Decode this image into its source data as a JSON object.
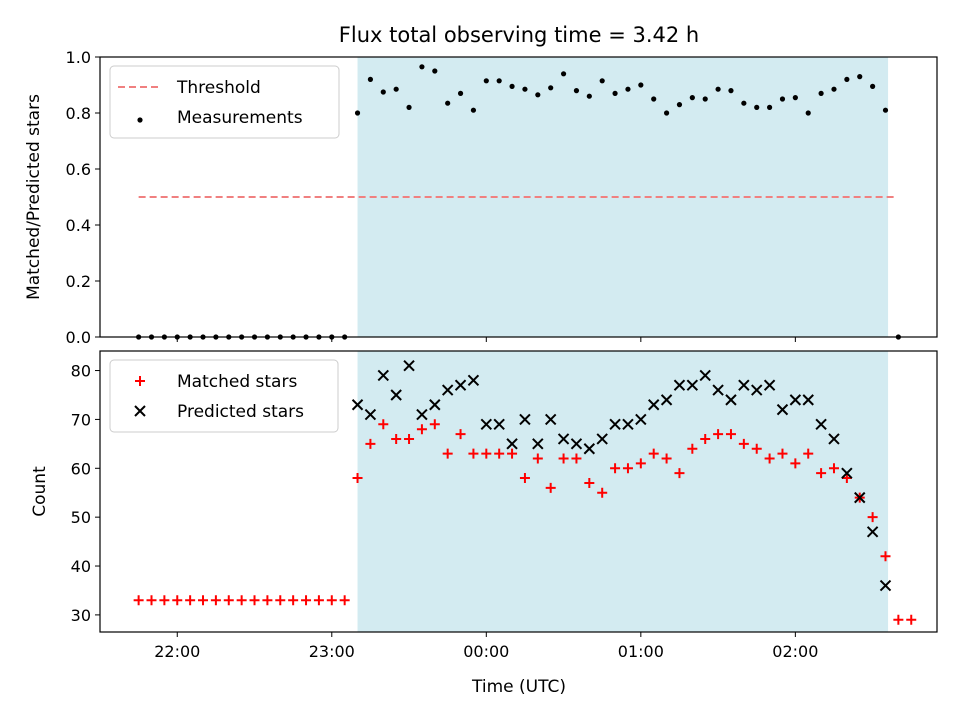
{
  "title": "Flux total observing time = 3.42 h",
  "chart_data": [
    {
      "type": "scatter",
      "ylabel": "Matched/Predicted stars",
      "xlabel": "",
      "ylim": [
        0,
        1
      ],
      "yticks": [
        "0.0",
        "0.2",
        "0.4",
        "0.6",
        "0.8",
        "1.0"
      ],
      "xlim": [
        "21:30",
        "02:55"
      ],
      "grid": false,
      "legend": "top-left",
      "highlight_span": [
        "23:10",
        "02:36"
      ],
      "highlight_color": "#d3ebf1",
      "threshold": {
        "name": "Threshold",
        "value": 0.5,
        "x": [
          "21:45",
          "02:39"
        ],
        "color": "#f08080"
      },
      "series": [
        {
          "name": "Measurements",
          "marker": "dot",
          "color": "#000000",
          "x": [
            "21:45",
            "21:50",
            "21:55",
            "22:00",
            "22:05",
            "22:10",
            "22:15",
            "22:20",
            "22:25",
            "22:30",
            "22:35",
            "22:40",
            "22:45",
            "22:50",
            "22:55",
            "23:00",
            "23:05",
            "23:10",
            "23:15",
            "23:20",
            "23:25",
            "23:30",
            "23:35",
            "23:40",
            "23:45",
            "23:50",
            "23:55",
            "00:00",
            "00:05",
            "00:10",
            "00:15",
            "00:20",
            "00:25",
            "00:30",
            "00:35",
            "00:40",
            "00:45",
            "00:50",
            "00:55",
            "01:00",
            "01:05",
            "01:10",
            "01:15",
            "01:20",
            "01:25",
            "01:30",
            "01:35",
            "01:40",
            "01:45",
            "01:50",
            "01:55",
            "02:00",
            "02:05",
            "02:10",
            "02:15",
            "02:20",
            "02:25",
            "02:30",
            "02:35",
            "02:40"
          ],
          "y": [
            0,
            0,
            0,
            0,
            0,
            0,
            0,
            0,
            0,
            0,
            0,
            0,
            0,
            0,
            0,
            0,
            0,
            0.8,
            0.92,
            0.875,
            0.885,
            0.82,
            0.965,
            0.95,
            0.835,
            0.87,
            0.81,
            0.915,
            0.915,
            0.895,
            0.885,
            0.865,
            0.89,
            0.94,
            0.88,
            0.86,
            0.915,
            0.87,
            0.885,
            0.9,
            0.85,
            0.8,
            0.83,
            0.855,
            0.85,
            0.885,
            0.88,
            0.835,
            0.82,
            0.82,
            0.85,
            0.855,
            0.8,
            0.87,
            0.885,
            0.92,
            0.93,
            0.895,
            0.81,
            0
          ]
        }
      ]
    },
    {
      "type": "scatter",
      "ylabel": "Count",
      "xlabel": "Time (UTC)",
      "ylim": [
        26.5,
        84
      ],
      "yticks": [
        "30",
        "40",
        "50",
        "60",
        "70",
        "80"
      ],
      "xticks": [
        "22:00",
        "23:00",
        "00:00",
        "01:00",
        "02:00"
      ],
      "xlim": [
        "21:30",
        "02:55"
      ],
      "grid": false,
      "legend": "top-left",
      "highlight_span": [
        "23:10",
        "02:36"
      ],
      "series": [
        {
          "name": "Matched stars",
          "marker": "plus",
          "color": "#ff0000",
          "x": [
            "21:45",
            "21:50",
            "21:55",
            "22:00",
            "22:05",
            "22:10",
            "22:15",
            "22:20",
            "22:25",
            "22:30",
            "22:35",
            "22:40",
            "22:45",
            "22:50",
            "22:55",
            "23:00",
            "23:05",
            "23:10",
            "23:15",
            "23:20",
            "23:25",
            "23:30",
            "23:35",
            "23:40",
            "23:45",
            "23:50",
            "23:55",
            "00:00",
            "00:05",
            "00:10",
            "00:15",
            "00:20",
            "00:25",
            "00:30",
            "00:35",
            "00:40",
            "00:45",
            "00:50",
            "00:55",
            "01:00",
            "01:05",
            "01:10",
            "01:15",
            "01:20",
            "01:25",
            "01:30",
            "01:35",
            "01:40",
            "01:45",
            "01:50",
            "01:55",
            "02:00",
            "02:05",
            "02:10",
            "02:15",
            "02:20",
            "02:25",
            "02:30",
            "02:35",
            "02:40"
          ],
          "y": [
            33,
            33,
            33,
            33,
            33,
            33,
            33,
            33,
            33,
            33,
            33,
            33,
            33,
            33,
            33,
            33,
            33,
            58,
            65,
            69,
            66,
            66,
            68,
            69,
            63,
            67,
            63,
            63,
            63,
            63,
            58,
            62,
            56,
            62,
            62,
            57,
            55,
            60,
            60,
            61,
            63,
            62,
            59,
            64,
            66,
            67,
            67,
            65,
            64,
            62,
            63,
            61,
            63,
            59,
            60,
            58,
            54,
            50,
            42,
            29
          ]
        },
        {
          "name": "Predicted stars",
          "marker": "x",
          "color": "#000000",
          "x": [
            "23:10",
            "23:15",
            "23:20",
            "23:25",
            "23:30",
            "23:35",
            "23:40",
            "23:45",
            "23:50",
            "23:55",
            "00:00",
            "00:05",
            "00:10",
            "00:15",
            "00:20",
            "00:25",
            "00:30",
            "00:35",
            "00:40",
            "00:45",
            "00:50",
            "00:55",
            "01:00",
            "01:05",
            "01:10",
            "01:15",
            "01:20",
            "01:25",
            "01:30",
            "01:35",
            "01:40",
            "01:45",
            "01:50",
            "01:55",
            "02:00",
            "02:05",
            "02:10",
            "02:15",
            "02:20",
            "02:25",
            "02:30",
            "02:35"
          ],
          "y": [
            73,
            71,
            79,
            75,
            81,
            71,
            73,
            76,
            77,
            78,
            69,
            69,
            65,
            70,
            65,
            70,
            66,
            65,
            64,
            66,
            69,
            69,
            70,
            73,
            74,
            77,
            77,
            79,
            76,
            74,
            77,
            76,
            77,
            72,
            74,
            74,
            69,
            66,
            59,
            54,
            47,
            36
          ]
        },
        {
          "name": "",
          "marker": "plus",
          "color": "#ff0000",
          "x": [
            "02:45"
          ],
          "y": [
            29
          ]
        }
      ]
    }
  ]
}
